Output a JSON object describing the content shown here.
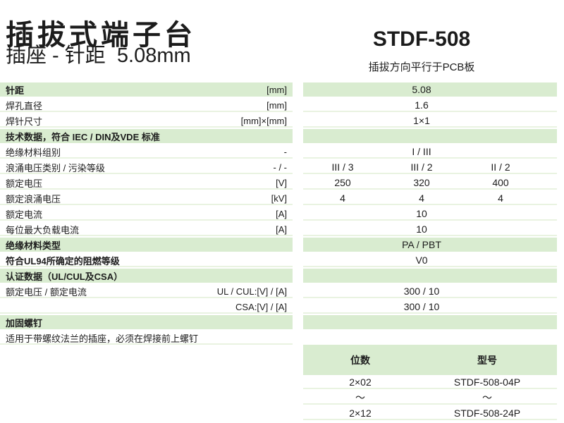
{
  "header": {
    "title": "插拔式端子台",
    "subtitle": "插座 - 针距  5.08mm",
    "model": "STDF-508",
    "model_note": "插拔方向平行于PCB板"
  },
  "colors": {
    "band_green": "#d9ecd0",
    "separator_line": "#e9f3e1",
    "text": "#1c1c1c"
  },
  "spec_table": {
    "rows": [
      {
        "label": "针距",
        "unit": "[mm]",
        "value": "5.08",
        "green": true,
        "bold": true
      },
      {
        "label": "焊孔直径",
        "unit": "[mm]",
        "value": "1.6"
      },
      {
        "label": "焊针尺寸",
        "unit": "[mm]×[mm]",
        "value": "1×1"
      },
      {
        "label": "技术数据，符合 IEC / DIN及VDE 标准",
        "unit": "",
        "value": "",
        "green": true,
        "bold": true
      },
      {
        "label": "绝缘材料组别",
        "unit": "-",
        "value": "I / III"
      },
      {
        "label": "浪涌电压类别 / 污染等级",
        "unit": "- / -",
        "values": [
          "III / 3",
          "III / 2",
          "II / 2"
        ]
      },
      {
        "label": "额定电压",
        "unit": "[V]",
        "values": [
          "250",
          "320",
          "400"
        ]
      },
      {
        "label": "额定浪涌电压",
        "unit": "[kV]",
        "values": [
          "4",
          "4",
          "4"
        ]
      },
      {
        "label": "额定电流",
        "unit": "[A]",
        "value": "10"
      },
      {
        "label": "每位最大负载电流",
        "unit": "[A]",
        "value": "10"
      },
      {
        "label": "绝缘材料类型",
        "unit": "",
        "value": "PA / PBT",
        "green": true,
        "bold": true
      },
      {
        "label": "符合UL94所确定的阻燃等级",
        "unit": "",
        "value": "V0",
        "bold": true
      },
      {
        "label": "认证数据（UL/CUL及CSA）",
        "unit": "",
        "value": "",
        "green": true,
        "bold": true
      },
      {
        "label": "额定电压 / 额定电流",
        "unit": "UL / CUL:[V] / [A]",
        "value": "300 / 10"
      },
      {
        "label": "",
        "unit": "CSA:[V] / [A]",
        "value": "300 / 10"
      },
      {
        "label": "加固螺钉",
        "unit": "",
        "value": "",
        "green": true,
        "bold": true
      },
      {
        "label": "适用于带螺纹法兰的插座，必须在焊接前上螺钉",
        "unit": "",
        "value": "",
        "note_row": true
      }
    ]
  },
  "model_table": {
    "headers": [
      "位数",
      "型号"
    ],
    "rows": [
      [
        "2×02",
        "STDF-508-04P"
      ],
      [
        "〜",
        "〜"
      ],
      [
        "2×12",
        "STDF-508-24P"
      ]
    ]
  }
}
